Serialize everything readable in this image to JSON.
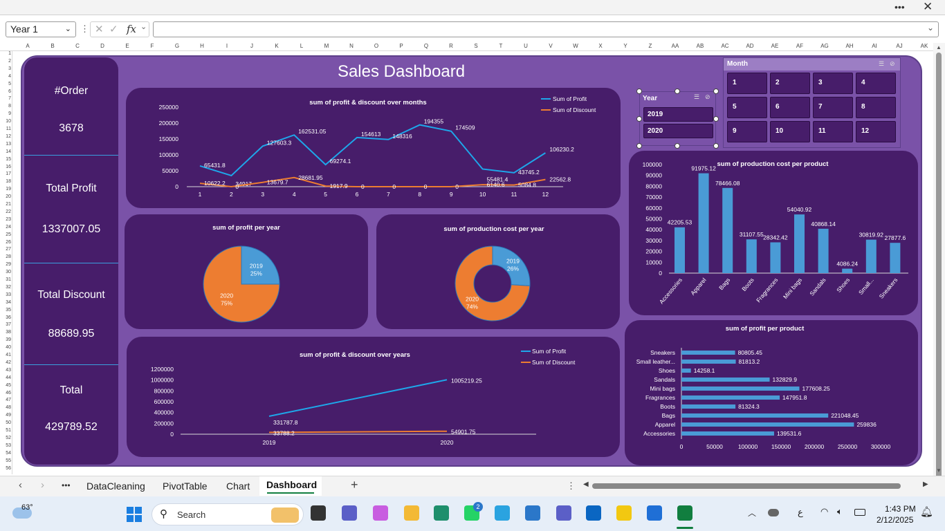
{
  "formula_bar": {
    "name_box": "Year 1",
    "fx": "fx",
    "formula": ""
  },
  "columns": [
    "A",
    "B",
    "C",
    "D",
    "E",
    "F",
    "G",
    "H",
    "I",
    "J",
    "K",
    "L",
    "M",
    "N",
    "O",
    "P",
    "Q",
    "R",
    "S",
    "T",
    "U",
    "V",
    "W",
    "X",
    "Y",
    "Z",
    "AA",
    "AB",
    "AC",
    "AD",
    "AE",
    "AF",
    "AG",
    "AH",
    "AI",
    "AJ",
    "AK"
  ],
  "dashboard": {
    "title": "Sales Dashboard",
    "kpis": [
      {
        "label": "#Order",
        "value": "3678"
      },
      {
        "label": "Total Profit",
        "value": "1337007.05"
      },
      {
        "label": "Total Discount",
        "value": "88689.95"
      },
      {
        "label": "Total",
        "value": "429789.52"
      }
    ],
    "year_slicer": {
      "title": "Year",
      "items": [
        "2019",
        "2020"
      ]
    },
    "month_slicer": {
      "title": "Month",
      "items": [
        "1",
        "2",
        "3",
        "4",
        "5",
        "6",
        "7",
        "8",
        "9",
        "10",
        "11",
        "12"
      ]
    }
  },
  "colors": {
    "profit": "#1ea7ea",
    "discount": "#ed7d31",
    "bar": "#4a9bd6",
    "panel": "#471d6a",
    "background": "#7a52a8"
  },
  "chart_data": [
    {
      "type": "line",
      "title": "sum of profit & discount over months",
      "x": [
        1,
        2,
        3,
        4,
        5,
        6,
        7,
        8,
        9,
        10,
        11,
        12
      ],
      "ylim": [
        0,
        250000
      ],
      "yticks": [
        "250000",
        "200000",
        "150000",
        "100000",
        "50000",
        "0"
      ],
      "legend": "top-right",
      "series": [
        {
          "name": "Sum of Profit",
          "values": [
            65431.8,
            34917,
            127603.3,
            162531.05,
            69274.1,
            154613,
            148316,
            194355,
            174509,
            55481.4,
            43745.2,
            106230.2
          ],
          "labels": [
            "65431.8",
            "34917",
            "127603.3",
            "162531.05",
            "69274.1",
            "154613",
            "148316",
            "194355",
            "174509",
            "55481.4",
            "43745.2",
            "106230.2"
          ]
        },
        {
          "name": "Sum of Discount",
          "values": [
            10622.2,
            0,
            13679.7,
            28681.95,
            1917.9,
            0,
            0,
            0,
            0,
            6140.6,
            5084.8,
            22562.8
          ],
          "labels": [
            "10622.2",
            "0",
            "13679.7",
            "28681.95",
            "1917.9",
            "0",
            "0",
            "0",
            "0",
            "6140.6",
            "5084.8",
            "22562.8"
          ]
        }
      ]
    },
    {
      "type": "pie",
      "title": "sum of profit per year",
      "slices": [
        {
          "label": "2019",
          "pct": 25,
          "text": "25%"
        },
        {
          "label": "2020",
          "pct": 75,
          "text": "75%"
        }
      ]
    },
    {
      "type": "pie",
      "title": "sum of production cost per year",
      "donut": true,
      "slices": [
        {
          "label": "2019",
          "pct": 26,
          "text": "26%"
        },
        {
          "label": "2020",
          "pct": 74,
          "text": "74%"
        }
      ]
    },
    {
      "type": "line",
      "title": "sum of profit & discount over years",
      "x": [
        "2019",
        "2020"
      ],
      "ylim": [
        0,
        1200000
      ],
      "yticks": [
        "1200000",
        "1000000",
        "800000",
        "600000",
        "400000",
        "200000",
        "0"
      ],
      "legend": "top-right",
      "series": [
        {
          "name": "Sum of Profit",
          "values": [
            331787.8,
            1005219.25
          ],
          "labels": [
            "331787.8",
            "1005219.25"
          ]
        },
        {
          "name": "Sum of Discount",
          "values": [
            33788.2,
            54901.75
          ],
          "labels": [
            "33788.2",
            "54901.75"
          ]
        }
      ]
    },
    {
      "type": "bar",
      "title": "sum of production cost per product",
      "categories": [
        "Accessories",
        "Apparel",
        "Bags",
        "Boots",
        "Fragrances",
        "Mini bags",
        "Sandals",
        "Shoes",
        "Small...",
        "Sneakers"
      ],
      "values": [
        42205.53,
        91975.12,
        78466.08,
        31107.55,
        28342.42,
        54040.92,
        40868.14,
        4086.24,
        30819.92,
        27877.6
      ],
      "labels": [
        "42205.53",
        "91975.12",
        "78466.08",
        "31107.55",
        "28342.42",
        "54040.92",
        "40868.14",
        "4086.24",
        "30819.92",
        "27877.6"
      ],
      "ylim": [
        0,
        100000
      ],
      "yticks": [
        "100000",
        "90000",
        "80000",
        "70000",
        "60000",
        "50000",
        "40000",
        "30000",
        "20000",
        "10000",
        "0"
      ]
    },
    {
      "type": "bar",
      "orientation": "horizontal",
      "title": "sum of profit per product",
      "categories": [
        "Sneakers",
        "Small leather...",
        "Shoes",
        "Sandals",
        "Mini bags",
        "Fragrances",
        "Boots",
        "Bags",
        "Apparel",
        "Accessories"
      ],
      "values": [
        80805.45,
        81813.2,
        14258.1,
        132829.9,
        177608.25,
        147951.8,
        81324.3,
        221048.45,
        259836,
        139531.6
      ],
      "labels": [
        "80805.45",
        "81813.2",
        "14258.1",
        "132829.9",
        "177608.25",
        "147951.8",
        "81324.3",
        "221048.45",
        "259836",
        "139531.6"
      ],
      "xlim": [
        0,
        300000
      ],
      "xticks": [
        "0",
        "50000",
        "100000",
        "150000",
        "200000",
        "250000",
        "300000"
      ]
    }
  ],
  "sheet_tabs": [
    "DataCleaning",
    "PivotTable",
    "Chart",
    "Dashboard"
  ],
  "active_tab": "Dashboard",
  "taskbar": {
    "weather": "63°",
    "search": "Search",
    "time": "1:43 PM",
    "date": "2/12/2025",
    "lang": "ع",
    "badge": "2"
  }
}
